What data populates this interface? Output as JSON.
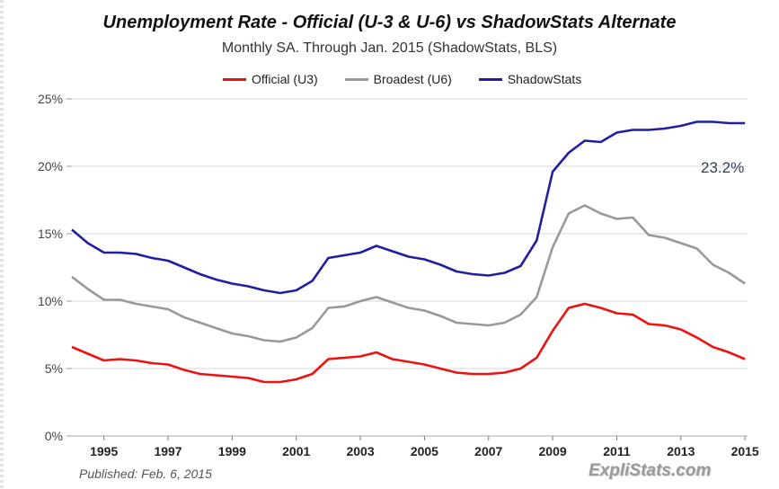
{
  "chart_data": {
    "type": "line",
    "title": "Unemployment Rate - Official (U-3 & U-6) vs ShadowStats Alternate",
    "subtitle": "Monthly SA. Through Jan. 2015  (ShadowStats, BLS)",
    "xlabel": "",
    "ylabel": "",
    "xlim": [
      1994,
      2015.08
    ],
    "ylim": [
      0,
      25
    ],
    "grid": true,
    "legend_position": "top-center",
    "x_ticks": [
      "1995",
      "1997",
      "1999",
      "2001",
      "2003",
      "2005",
      "2007",
      "2009",
      "2011",
      "2013",
      "2015"
    ],
    "y_ticks": [
      "0%",
      "5%",
      "10%",
      "15%",
      "20%",
      "25%"
    ],
    "series": [
      {
        "name": "Official (U3)",
        "color": "#ee1111",
        "points": [
          [
            1994.0,
            6.6
          ],
          [
            1994.5,
            6.1
          ],
          [
            1995.0,
            5.6
          ],
          [
            1995.5,
            5.7
          ],
          [
            1996.0,
            5.6
          ],
          [
            1996.5,
            5.4
          ],
          [
            1997.0,
            5.3
          ],
          [
            1997.5,
            4.9
          ],
          [
            1998.0,
            4.6
          ],
          [
            1998.5,
            4.5
          ],
          [
            1999.0,
            4.4
          ],
          [
            1999.5,
            4.3
          ],
          [
            2000.0,
            4.0
          ],
          [
            2000.5,
            4.0
          ],
          [
            2001.0,
            4.2
          ],
          [
            2001.5,
            4.6
          ],
          [
            2002.0,
            5.7
          ],
          [
            2002.5,
            5.8
          ],
          [
            2003.0,
            5.9
          ],
          [
            2003.5,
            6.2
          ],
          [
            2004.0,
            5.7
          ],
          [
            2004.5,
            5.5
          ],
          [
            2005.0,
            5.3
          ],
          [
            2005.5,
            5.0
          ],
          [
            2006.0,
            4.7
          ],
          [
            2006.5,
            4.6
          ],
          [
            2007.0,
            4.6
          ],
          [
            2007.5,
            4.7
          ],
          [
            2008.0,
            5.0
          ],
          [
            2008.5,
            5.8
          ],
          [
            2009.0,
            7.8
          ],
          [
            2009.5,
            9.5
          ],
          [
            2010.0,
            9.8
          ],
          [
            2010.5,
            9.5
          ],
          [
            2011.0,
            9.1
          ],
          [
            2011.5,
            9.0
          ],
          [
            2012.0,
            8.3
          ],
          [
            2012.5,
            8.2
          ],
          [
            2013.0,
            7.9
          ],
          [
            2013.5,
            7.3
          ],
          [
            2014.0,
            6.6
          ],
          [
            2014.5,
            6.2
          ],
          [
            2015.0,
            5.7
          ]
        ]
      },
      {
        "name": "Broadest (U6)",
        "color": "#999999",
        "points": [
          [
            1994.0,
            11.8
          ],
          [
            1994.5,
            10.9
          ],
          [
            1995.0,
            10.1
          ],
          [
            1995.5,
            10.1
          ],
          [
            1996.0,
            9.8
          ],
          [
            1996.5,
            9.6
          ],
          [
            1997.0,
            9.4
          ],
          [
            1997.5,
            8.8
          ],
          [
            1998.0,
            8.4
          ],
          [
            1998.5,
            8.0
          ],
          [
            1999.0,
            7.6
          ],
          [
            1999.5,
            7.4
          ],
          [
            2000.0,
            7.1
          ],
          [
            2000.5,
            7.0
          ],
          [
            2001.0,
            7.3
          ],
          [
            2001.5,
            8.0
          ],
          [
            2002.0,
            9.5
          ],
          [
            2002.5,
            9.6
          ],
          [
            2003.0,
            10.0
          ],
          [
            2003.5,
            10.3
          ],
          [
            2004.0,
            9.9
          ],
          [
            2004.5,
            9.5
          ],
          [
            2005.0,
            9.3
          ],
          [
            2005.5,
            8.9
          ],
          [
            2006.0,
            8.4
          ],
          [
            2006.5,
            8.3
          ],
          [
            2007.0,
            8.2
          ],
          [
            2007.5,
            8.4
          ],
          [
            2008.0,
            9.0
          ],
          [
            2008.5,
            10.3
          ],
          [
            2009.0,
            14.0
          ],
          [
            2009.5,
            16.5
          ],
          [
            2010.0,
            17.1
          ],
          [
            2010.5,
            16.5
          ],
          [
            2011.0,
            16.1
          ],
          [
            2011.5,
            16.2
          ],
          [
            2012.0,
            14.9
          ],
          [
            2012.5,
            14.7
          ],
          [
            2013.0,
            14.3
          ],
          [
            2013.5,
            13.9
          ],
          [
            2014.0,
            12.7
          ],
          [
            2014.5,
            12.1
          ],
          [
            2015.0,
            11.3
          ]
        ]
      },
      {
        "name": "ShadowStats",
        "color": "#1f1fa0",
        "points": [
          [
            1994.0,
            15.3
          ],
          [
            1994.5,
            14.3
          ],
          [
            1995.0,
            13.6
          ],
          [
            1995.5,
            13.6
          ],
          [
            1996.0,
            13.5
          ],
          [
            1996.5,
            13.2
          ],
          [
            1997.0,
            13.0
          ],
          [
            1997.5,
            12.5
          ],
          [
            1998.0,
            12.0
          ],
          [
            1998.5,
            11.6
          ],
          [
            1999.0,
            11.3
          ],
          [
            1999.5,
            11.1
          ],
          [
            2000.0,
            10.8
          ],
          [
            2000.5,
            10.6
          ],
          [
            2001.0,
            10.8
          ],
          [
            2001.5,
            11.5
          ],
          [
            2002.0,
            13.2
          ],
          [
            2002.5,
            13.4
          ],
          [
            2003.0,
            13.6
          ],
          [
            2003.5,
            14.1
          ],
          [
            2004.0,
            13.7
          ],
          [
            2004.5,
            13.3
          ],
          [
            2005.0,
            13.1
          ],
          [
            2005.5,
            12.7
          ],
          [
            2006.0,
            12.2
          ],
          [
            2006.5,
            12.0
          ],
          [
            2007.0,
            11.9
          ],
          [
            2007.5,
            12.1
          ],
          [
            2008.0,
            12.6
          ],
          [
            2008.5,
            14.5
          ],
          [
            2009.0,
            19.6
          ],
          [
            2009.5,
            21.0
          ],
          [
            2010.0,
            21.9
          ],
          [
            2010.5,
            21.8
          ],
          [
            2011.0,
            22.5
          ],
          [
            2011.5,
            22.7
          ],
          [
            2012.0,
            22.7
          ],
          [
            2012.5,
            22.8
          ],
          [
            2013.0,
            23.0
          ],
          [
            2013.5,
            23.3
          ],
          [
            2014.0,
            23.3
          ],
          [
            2014.5,
            23.2
          ],
          [
            2015.0,
            23.2
          ]
        ]
      }
    ],
    "annotation": {
      "text": "23.2%"
    }
  },
  "footer": {
    "published": "Published: Feb. 6, 2015",
    "brand": "ExpliStats.com"
  }
}
